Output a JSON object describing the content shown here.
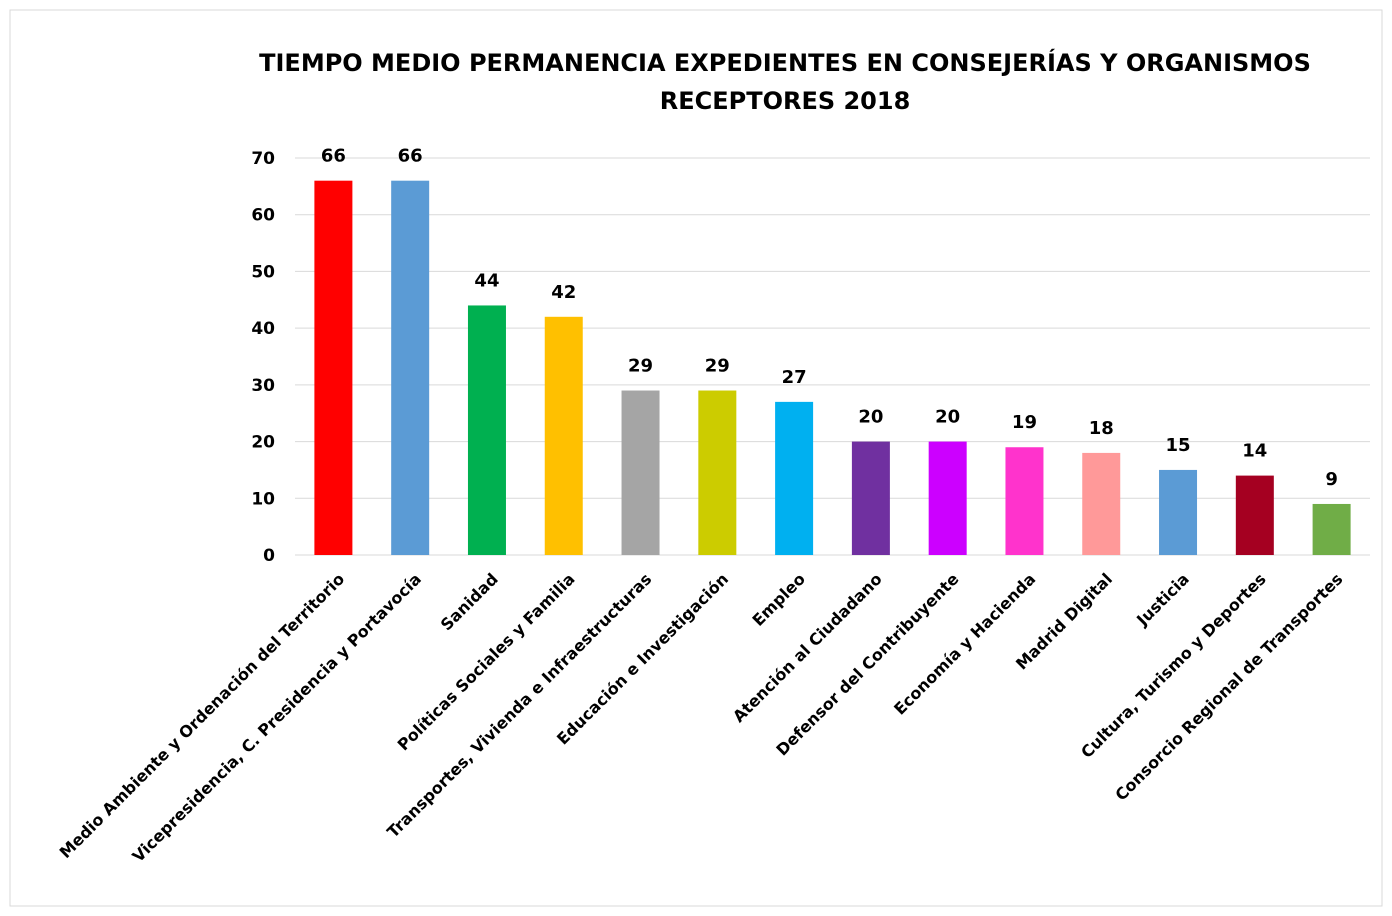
{
  "chart_data": {
    "type": "bar",
    "title": "TIEMPO MEDIO PERMANENCIA EXPEDIENTES EN CONSEJERÍAS Y ORGANISMOS RECEPTORES 2018",
    "categories": [
      "Medio Ambiente y Ordenación del Territorio",
      "Vicepresidencia, C. Presidencia y Portavocía",
      "Sanidad",
      "Políticas Sociales y Familia",
      "Transportes, Vivienda e Infraestructuras",
      "Educación e Investigación",
      "Empleo",
      "Atención al Ciudadano",
      "Defensor del Contribuyente",
      "Economía y Hacienda",
      "Madrid Digital",
      "Justicia",
      "Cultura, Turismo y Deportes",
      "Consorcio Regional de Transportes"
    ],
    "values": [
      66,
      66,
      44,
      42,
      29,
      29,
      27,
      20,
      20,
      19,
      18,
      15,
      14,
      9
    ],
    "colors": [
      "#ff0000",
      "#5b9bd5",
      "#00b050",
      "#ffc000",
      "#a5a5a5",
      "#cccc00",
      "#00b0f0",
      "#7030a0",
      "#cc00ff",
      "#ff33cc",
      "#ff9999",
      "#5b9bd5",
      "#a50021",
      "#70ad47"
    ],
    "ylim": [
      0,
      70
    ],
    "yticks": [
      0,
      10,
      20,
      30,
      40,
      50,
      60,
      70
    ],
    "grid": true,
    "data_labels": true
  }
}
